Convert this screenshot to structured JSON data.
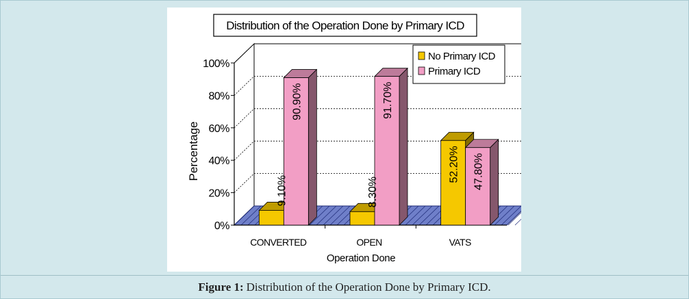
{
  "figure": {
    "caption_label": "Figure 1:",
    "caption_text": "Distribution of the Operation Done by Primary ICD."
  },
  "chart_data": {
    "type": "bar",
    "title": "Distribution of the Operation Done by Primary ICD",
    "xlabel": "Operation Done",
    "ylabel": "Percentage",
    "categories": [
      "CONVERTED",
      "OPEN",
      "VATS"
    ],
    "series": [
      {
        "name": "No Primary ICD",
        "values": [
          9.1,
          8.3,
          52.2
        ],
        "labels": [
          "9.10%",
          "8.30%",
          "52.20%"
        ],
        "color": "#f5c800"
      },
      {
        "name": "Primary ICD",
        "values": [
          90.9,
          91.7,
          47.8
        ],
        "labels": [
          "90.90%",
          "91.70%",
          "47.80%"
        ],
        "color": "#f29ec5"
      }
    ],
    "ylim": [
      0,
      100
    ],
    "yticks": [
      "0%",
      "20%",
      "40%",
      "60%",
      "80%",
      "100%"
    ],
    "grid": true,
    "legend": "top-right"
  }
}
